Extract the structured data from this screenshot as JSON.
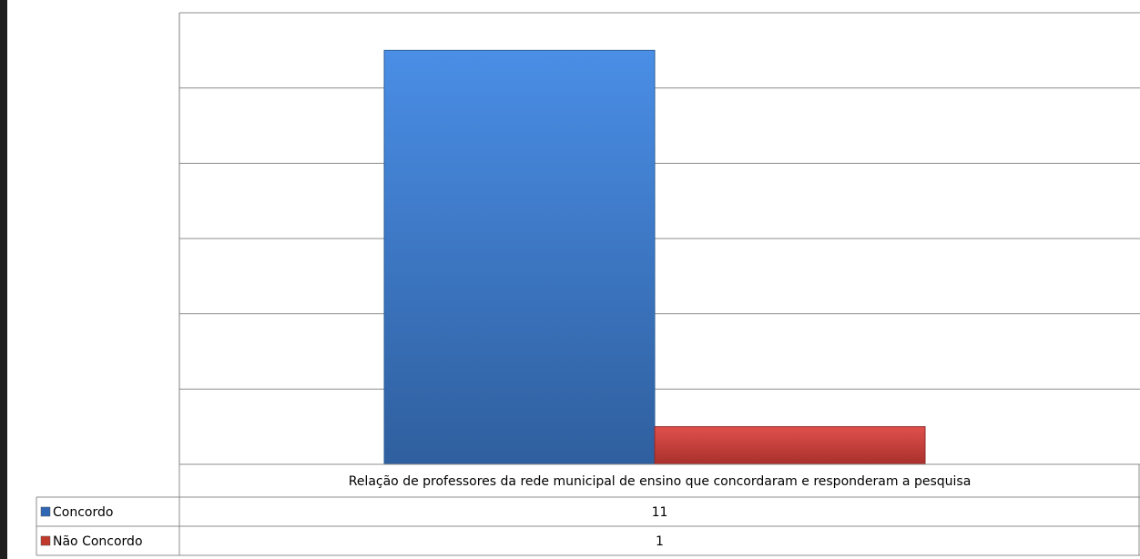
{
  "chart_data": {
    "type": "bar",
    "categories": [
      "Relação de professores da rede municipal de ensino que concordaram e responderam a pesquisa"
    ],
    "series": [
      {
        "name": "Concordo",
        "values": [
          11
        ],
        "color": "#3f7fd0",
        "legend_key_color": "#2f67b4"
      },
      {
        "name": "Não Concordo",
        "values": [
          1
        ],
        "color": "#c9403e",
        "legend_key_color": "#c0392b"
      }
    ],
    "ylim": [
      0,
      12
    ],
    "y_gridlines": 6,
    "y_tick_labels_shown": false,
    "legend": "data-table",
    "colors": {
      "gridline": "#8c8c8c",
      "axis": "#808080",
      "table_border": "#8c8c8c",
      "left_border": "#1e1e1e"
    }
  }
}
